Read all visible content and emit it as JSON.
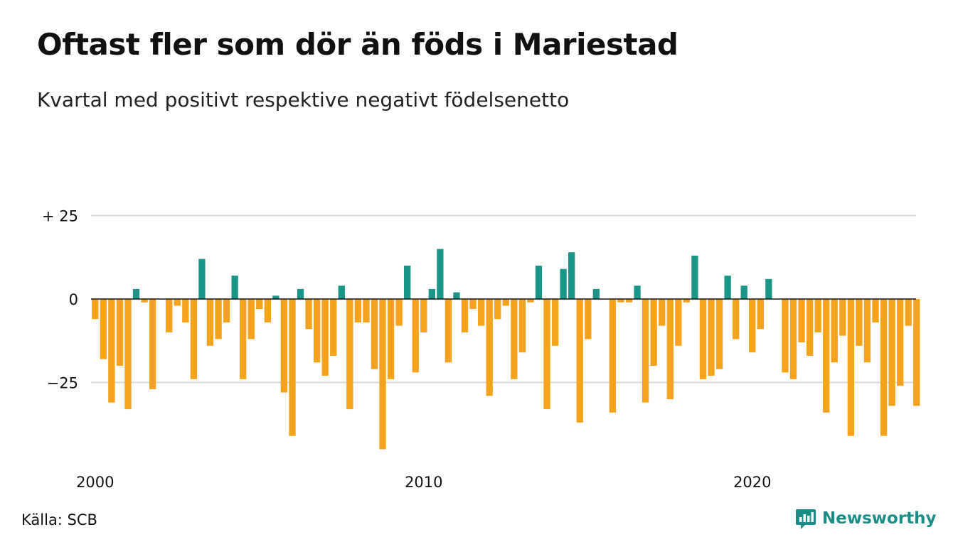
{
  "header": {
    "title": "Oftast fler som dör än föds i Mariestad",
    "subtitle": "Kvartal med positivt respektive negativt födelsenetto"
  },
  "footer": {
    "source": "Källa: SCB",
    "brand": "Newsworthy"
  },
  "colors": {
    "positive": "#1a9688",
    "negative": "#f5a21c",
    "grid": "#d9d9d9",
    "zero_line": "#111111",
    "brand": "#1a8e86"
  },
  "chart_data": {
    "type": "bar",
    "title": "Oftast fler som dör än föds i Mariestad",
    "subtitle": "Kvartal med positivt respektive negativt födelsenetto",
    "xlabel": "",
    "ylabel": "",
    "x_ticks": [
      "2000",
      "2010",
      "2020"
    ],
    "y_ticks": [
      {
        "value": 25,
        "label": "+ 25"
      },
      {
        "value": 0,
        "label": "0"
      },
      {
        "value": -25,
        "label": "−25"
      }
    ],
    "ylim": [
      -45,
      30
    ],
    "grid": true,
    "start_year": 2000,
    "periods_per_year": 4,
    "values": [
      -6,
      -18,
      -31,
      -20,
      -33,
      3,
      -1,
      -27,
      0,
      -10,
      -2,
      -7,
      -24,
      12,
      -14,
      -12,
      -7,
      7,
      -24,
      -12,
      -3,
      -7,
      1,
      -28,
      -41,
      3,
      -9,
      -19,
      -23,
      -17,
      4,
      -33,
      -7,
      -7,
      -21,
      -45,
      -24,
      -8,
      10,
      -22,
      -10,
      3,
      15,
      -19,
      2,
      -10,
      -3,
      -8,
      -29,
      -6,
      -2,
      -24,
      -16,
      -1,
      10,
      -33,
      -14,
      9,
      14,
      -37,
      -12,
      3,
      0,
      -34,
      -1,
      -1,
      4,
      -31,
      -20,
      -8,
      -30,
      -14,
      -1,
      13,
      -24,
      -23,
      -21,
      7,
      -12,
      4,
      -16,
      -9,
      6,
      0,
      -22,
      -24,
      -13,
      -17,
      -10,
      -34,
      -19,
      -11,
      -41,
      -14,
      -19,
      -7,
      -41,
      -32,
      -26,
      -8,
      -32
    ]
  }
}
